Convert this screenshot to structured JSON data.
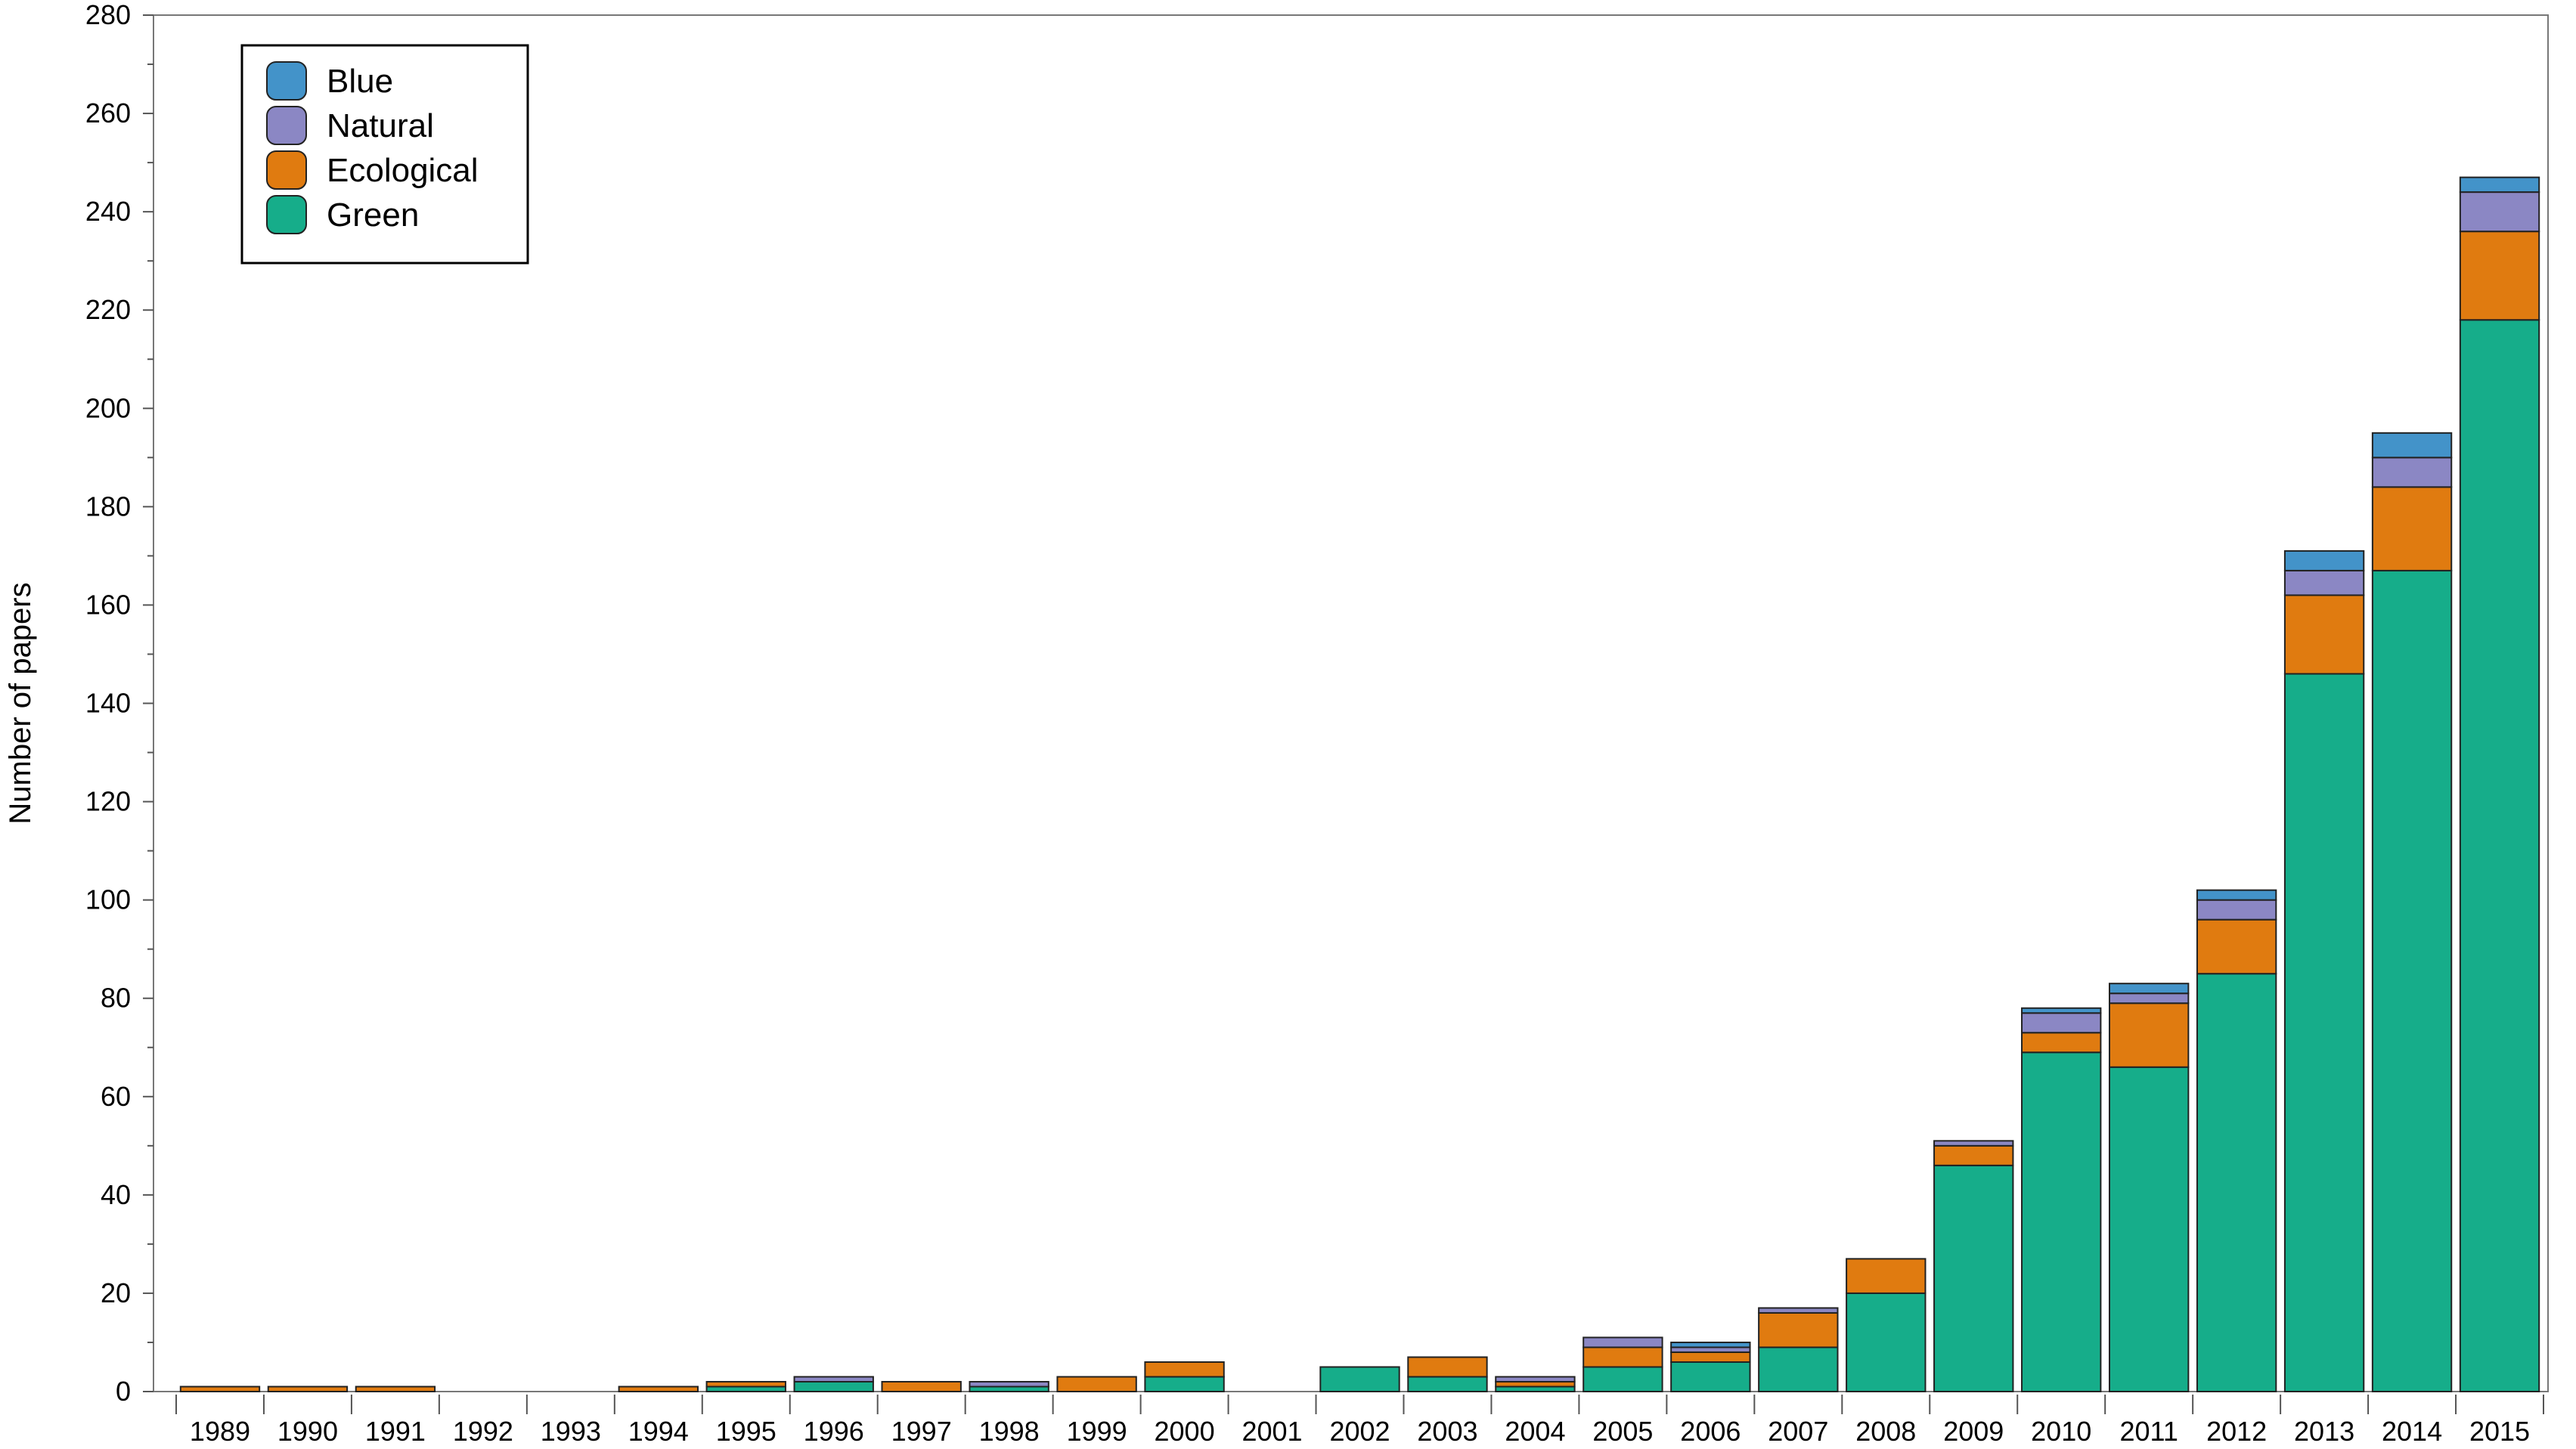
{
  "chart_data": {
    "type": "bar",
    "stacked": true,
    "title": "",
    "xlabel": "",
    "ylabel": "Number of papers",
    "ylim": [
      0,
      280
    ],
    "y_ticks": [
      0,
      20,
      40,
      60,
      80,
      100,
      120,
      140,
      160,
      180,
      200,
      220,
      240,
      260,
      280
    ],
    "grid": false,
    "legend_placement": "top-left",
    "categories": [
      "1989",
      "1990",
      "1991",
      "1992",
      "1993",
      "1994",
      "1995",
      "1996",
      "1997",
      "1998",
      "1999",
      "2000",
      "2001",
      "2002",
      "2003",
      "2004",
      "2005",
      "2006",
      "2007",
      "2008",
      "2009",
      "2010",
      "2011",
      "2012",
      "2013",
      "2014",
      "2015"
    ],
    "series": [
      {
        "name": "Green",
        "color": "#16ad8a",
        "values": [
          0,
          0,
          0,
          0,
          0,
          0,
          1,
          2,
          0,
          1,
          0,
          3,
          0,
          5,
          3,
          1,
          5,
          6,
          9,
          20,
          46,
          69,
          66,
          85,
          146,
          167,
          218
        ]
      },
      {
        "name": "Ecological",
        "color": "#e07b10",
        "values": [
          1,
          1,
          1,
          0,
          0,
          1,
          1,
          0,
          2,
          0,
          3,
          3,
          0,
          0,
          4,
          1,
          4,
          2,
          7,
          7,
          4,
          4,
          13,
          11,
          16,
          17,
          18
        ]
      },
      {
        "name": "Natural",
        "color": "#8b87c4",
        "values": [
          0,
          0,
          0,
          0,
          0,
          0,
          0,
          1,
          0,
          1,
          0,
          0,
          0,
          0,
          0,
          1,
          2,
          1,
          1,
          0,
          1,
          4,
          2,
          4,
          5,
          6,
          8
        ]
      },
      {
        "name": "Blue",
        "color": "#4393c9",
        "values": [
          0,
          0,
          0,
          0,
          0,
          0,
          0,
          0,
          0,
          0,
          0,
          0,
          0,
          0,
          0,
          0,
          0,
          1,
          0,
          0,
          0,
          1,
          2,
          2,
          4,
          5,
          3
        ]
      }
    ],
    "legend_order": [
      "Blue",
      "Natural",
      "Ecological",
      "Green"
    ]
  }
}
